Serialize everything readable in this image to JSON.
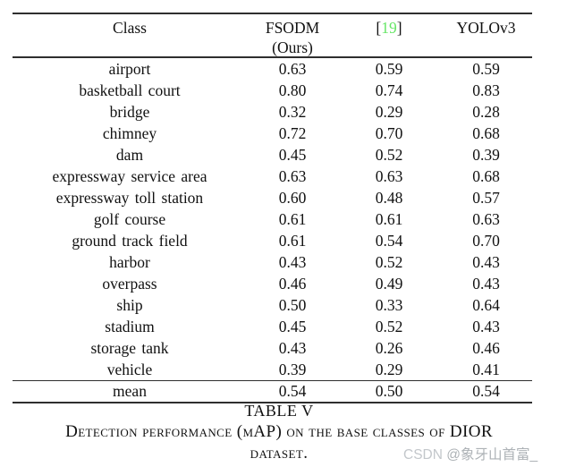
{
  "colors": {
    "citation_green": "#67e667",
    "rule_color": "#2e2e2e",
    "watermark_gray": "#c3c7cb"
  },
  "table": {
    "header": {
      "class_col": "Class",
      "fsodm_line1": "FSODM",
      "fsodm_line2": "(Ours)",
      "cite_open": "[",
      "cite_num": "19",
      "cite_close": "]",
      "yolov3_col": "YOLOv3"
    },
    "rows": [
      {
        "class": "airport",
        "fsodm": "0.63",
        "ref19": "0.59",
        "yolov3": "0.59"
      },
      {
        "class": "basketball court",
        "fsodm": "0.80",
        "ref19": "0.74",
        "yolov3": "0.83"
      },
      {
        "class": "bridge",
        "fsodm": "0.32",
        "ref19": "0.29",
        "yolov3": "0.28"
      },
      {
        "class": "chimney",
        "fsodm": "0.72",
        "ref19": "0.70",
        "yolov3": "0.68"
      },
      {
        "class": "dam",
        "fsodm": "0.45",
        "ref19": "0.52",
        "yolov3": "0.39"
      },
      {
        "class": "expressway service area",
        "fsodm": "0.63",
        "ref19": "0.63",
        "yolov3": "0.68"
      },
      {
        "class": "expressway toll station",
        "fsodm": "0.60",
        "ref19": "0.48",
        "yolov3": "0.57"
      },
      {
        "class": "golf course",
        "fsodm": "0.61",
        "ref19": "0.61",
        "yolov3": "0.63"
      },
      {
        "class": "ground track field",
        "fsodm": "0.61",
        "ref19": "0.54",
        "yolov3": "0.70"
      },
      {
        "class": "harbor",
        "fsodm": "0.43",
        "ref19": "0.52",
        "yolov3": "0.43"
      },
      {
        "class": "overpass",
        "fsodm": "0.46",
        "ref19": "0.49",
        "yolov3": "0.43"
      },
      {
        "class": "ship",
        "fsodm": "0.50",
        "ref19": "0.33",
        "yolov3": "0.64"
      },
      {
        "class": "stadium",
        "fsodm": "0.45",
        "ref19": "0.52",
        "yolov3": "0.43"
      },
      {
        "class": "storage tank",
        "fsodm": "0.43",
        "ref19": "0.26",
        "yolov3": "0.46"
      },
      {
        "class": "vehicle",
        "fsodm": "0.39",
        "ref19": "0.29",
        "yolov3": "0.41"
      }
    ],
    "mean": {
      "class": "mean",
      "fsodm": "0.54",
      "ref19": "0.50",
      "yolov3": "0.54"
    }
  },
  "caption": {
    "table_label": "TABLE V",
    "line1": "Detection performance (mAP) on the base classes of DIOR",
    "line2": "dataset."
  },
  "watermark": {
    "brand": "CSDN ",
    "user": "@象牙山首富_"
  }
}
